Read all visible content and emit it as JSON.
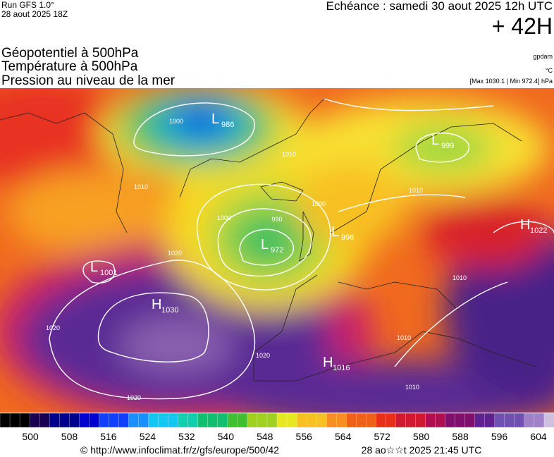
{
  "header": {
    "run": "Run GFS 1.0°",
    "run_date": "28 aout 2025 18Z",
    "valid": "Echéance : samedi 30 aout 2025 12h UTC",
    "lead": "+ 42H"
  },
  "titles": [
    "Géopotentiel à 500hPa",
    "Température à 500hPa",
    "Pression au niveau de la mer"
  ],
  "units": {
    "geopotential": "gpdam",
    "temperature": "°C",
    "pressure": "[Max 1030.1 | Min 972.4] hPa"
  },
  "pressure_centers": [
    {
      "letter": "L",
      "value": 986
    },
    {
      "letter": "L",
      "value": 999
    },
    {
      "letter": "L",
      "value": 972
    },
    {
      "letter": "L",
      "value": 996
    },
    {
      "letter": "L",
      "value": 1001
    },
    {
      "letter": "H",
      "value": 1030
    },
    {
      "letter": "H",
      "value": 1016
    },
    {
      "letter": "H",
      "value": 1022
    }
  ],
  "isobar_labels": [
    1000,
    1010,
    1010,
    990,
    1000,
    1020,
    1020,
    1020,
    1020,
    1010,
    1010,
    1010,
    1010,
    1000
  ],
  "colorbar_labels": [
    500,
    508,
    516,
    524,
    532,
    540,
    548,
    556,
    564,
    572,
    580,
    588,
    596,
    604
  ],
  "footer": {
    "source": "© http://www.infoclimat.fr/z/gfs/europe/500/42",
    "generated": "28 ao☆☆t 2025 21:45 UTC"
  }
}
